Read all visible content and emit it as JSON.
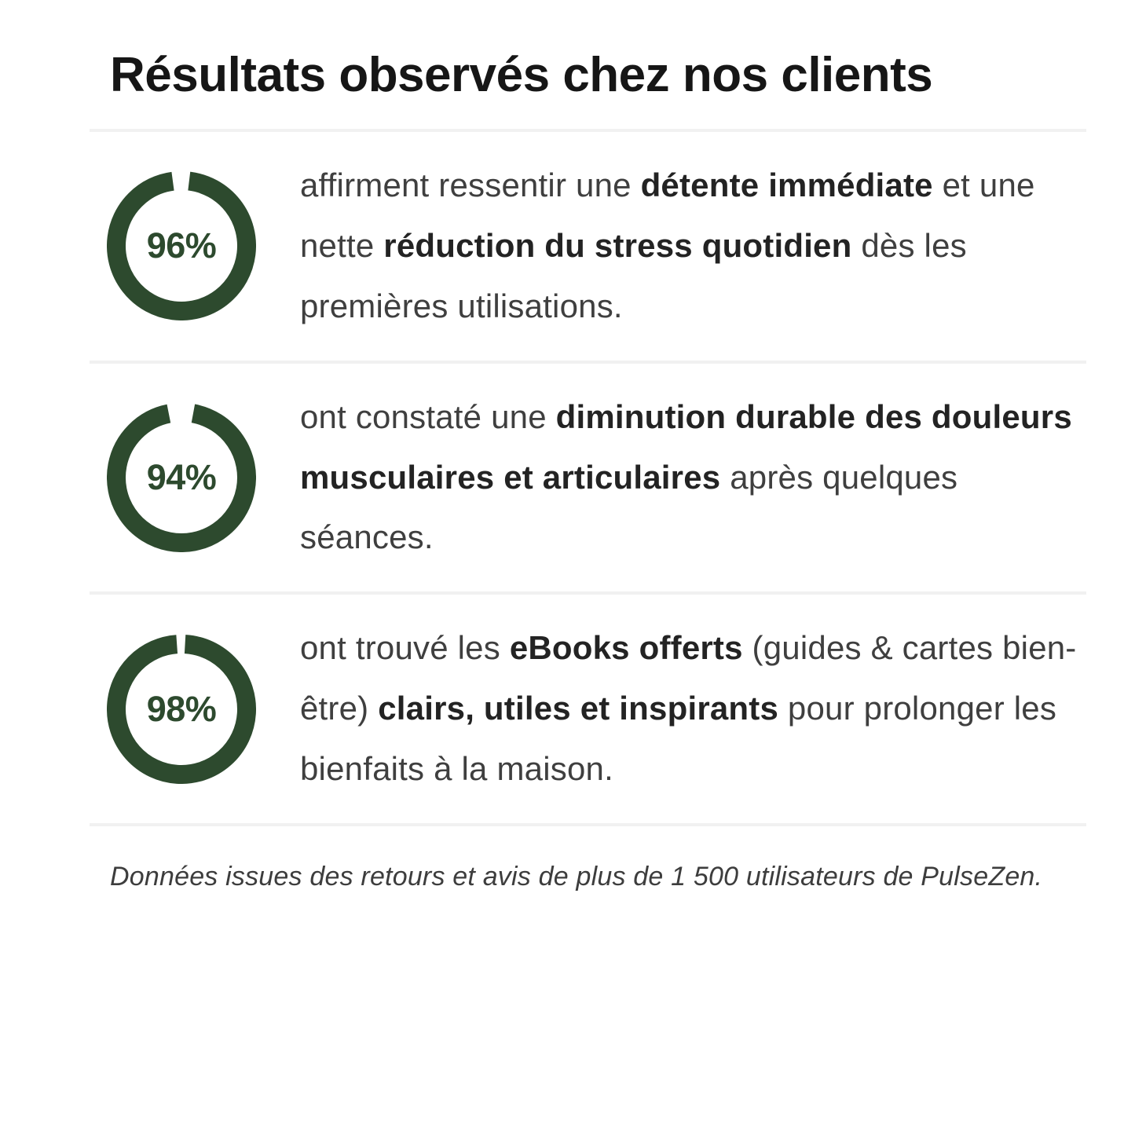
{
  "theme": {
    "background": "#ffffff",
    "accent_green": "#2d4a2e",
    "title_color": "#161616",
    "body_text_color": "#3f3f3f",
    "bold_text_color": "#232323",
    "divider_color": "#f1f1f1",
    "footnote_color": "#3d3d3d"
  },
  "header": {
    "title": "Résultats observés chez nos clients"
  },
  "stats": [
    {
      "percent": 96,
      "label": "96%",
      "segments": [
        {
          "text": "affirment ressentir une ",
          "bold": false
        },
        {
          "text": "détente immédiate",
          "bold": true
        },
        {
          "text": " et une nette ",
          "bold": false
        },
        {
          "text": "réduction du stress quotidien",
          "bold": true
        },
        {
          "text": " dès les premières utilisations.",
          "bold": false
        }
      ]
    },
    {
      "percent": 94,
      "label": "94%",
      "segments": [
        {
          "text": "ont constaté une ",
          "bold": false
        },
        {
          "text": "diminution durable des douleurs musculaires et articulaires",
          "bold": true
        },
        {
          "text": " après quelques séances.",
          "bold": false
        }
      ]
    },
    {
      "percent": 98,
      "label": "98%",
      "segments": [
        {
          "text": "ont trouvé les ",
          "bold": false
        },
        {
          "text": "eBooks offerts",
          "bold": true
        },
        {
          "text": " (guides & cartes bien-être) ",
          "bold": false
        },
        {
          "text": "clairs, utiles et inspirants",
          "bold": true
        },
        {
          "text": " pour prolonger les bienfaits à la maison.",
          "bold": false
        }
      ]
    }
  ],
  "footnote": "Données issues des retours et avis de plus de 1 500 utilisateurs de PulseZen."
}
